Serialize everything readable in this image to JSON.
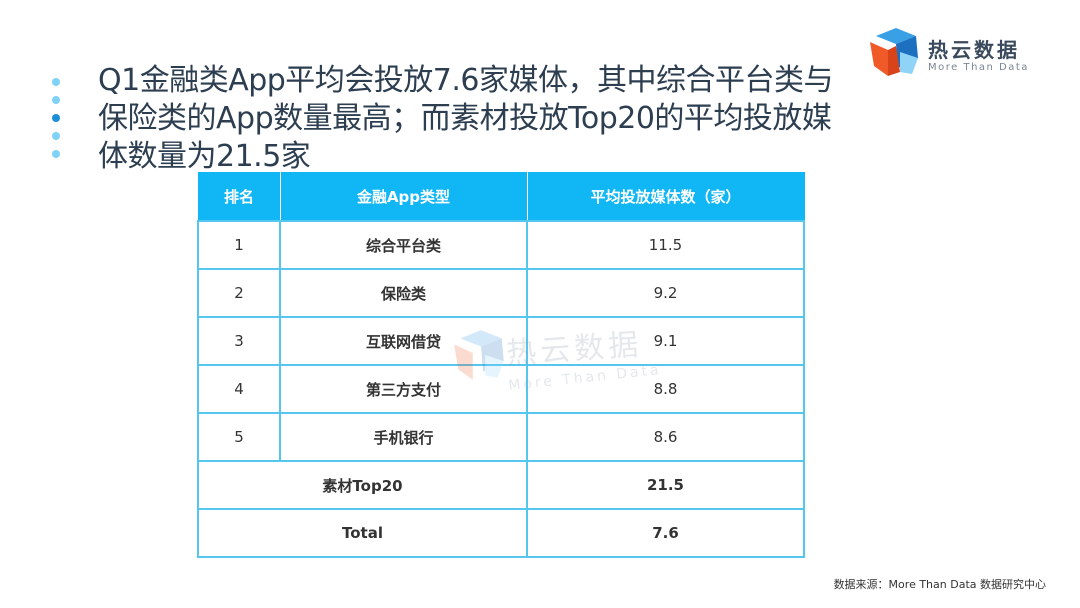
{
  "headline": "Q1金融类App平均会投放7.6家媒体，其中综合平台类与保险类的App数量最高；而素材投放Top20的平均投放媒体数量为21.5家",
  "logo": {
    "name_cn": "热云数据",
    "tagline": "More Than Data"
  },
  "watermark": {
    "name_cn": "热云数据",
    "tagline": "More Than Data"
  },
  "colors": {
    "header_bg": "#11b6f5",
    "border": "#55c6ee",
    "bullet_light": "#7fd1f5",
    "bullet_dark": "#1c8fd6"
  },
  "table": {
    "headers": [
      "排名",
      "金融App类型",
      "平均投放媒体数（家）"
    ],
    "rows": [
      {
        "rank": "1",
        "type": "综合平台类",
        "value": "11.5"
      },
      {
        "rank": "2",
        "type": "保险类",
        "value": "9.2"
      },
      {
        "rank": "3",
        "type": "互联网借贷",
        "value": "9.1"
      },
      {
        "rank": "4",
        "type": "第三方支付",
        "value": "8.8"
      },
      {
        "rank": "5",
        "type": "手机银行",
        "value": "8.6"
      }
    ],
    "summary": [
      {
        "label": "素材Top20",
        "value": "21.5"
      },
      {
        "label": "Total",
        "value": "7.6"
      }
    ]
  },
  "source": "数据来源：More Than Data 数据研究中心"
}
